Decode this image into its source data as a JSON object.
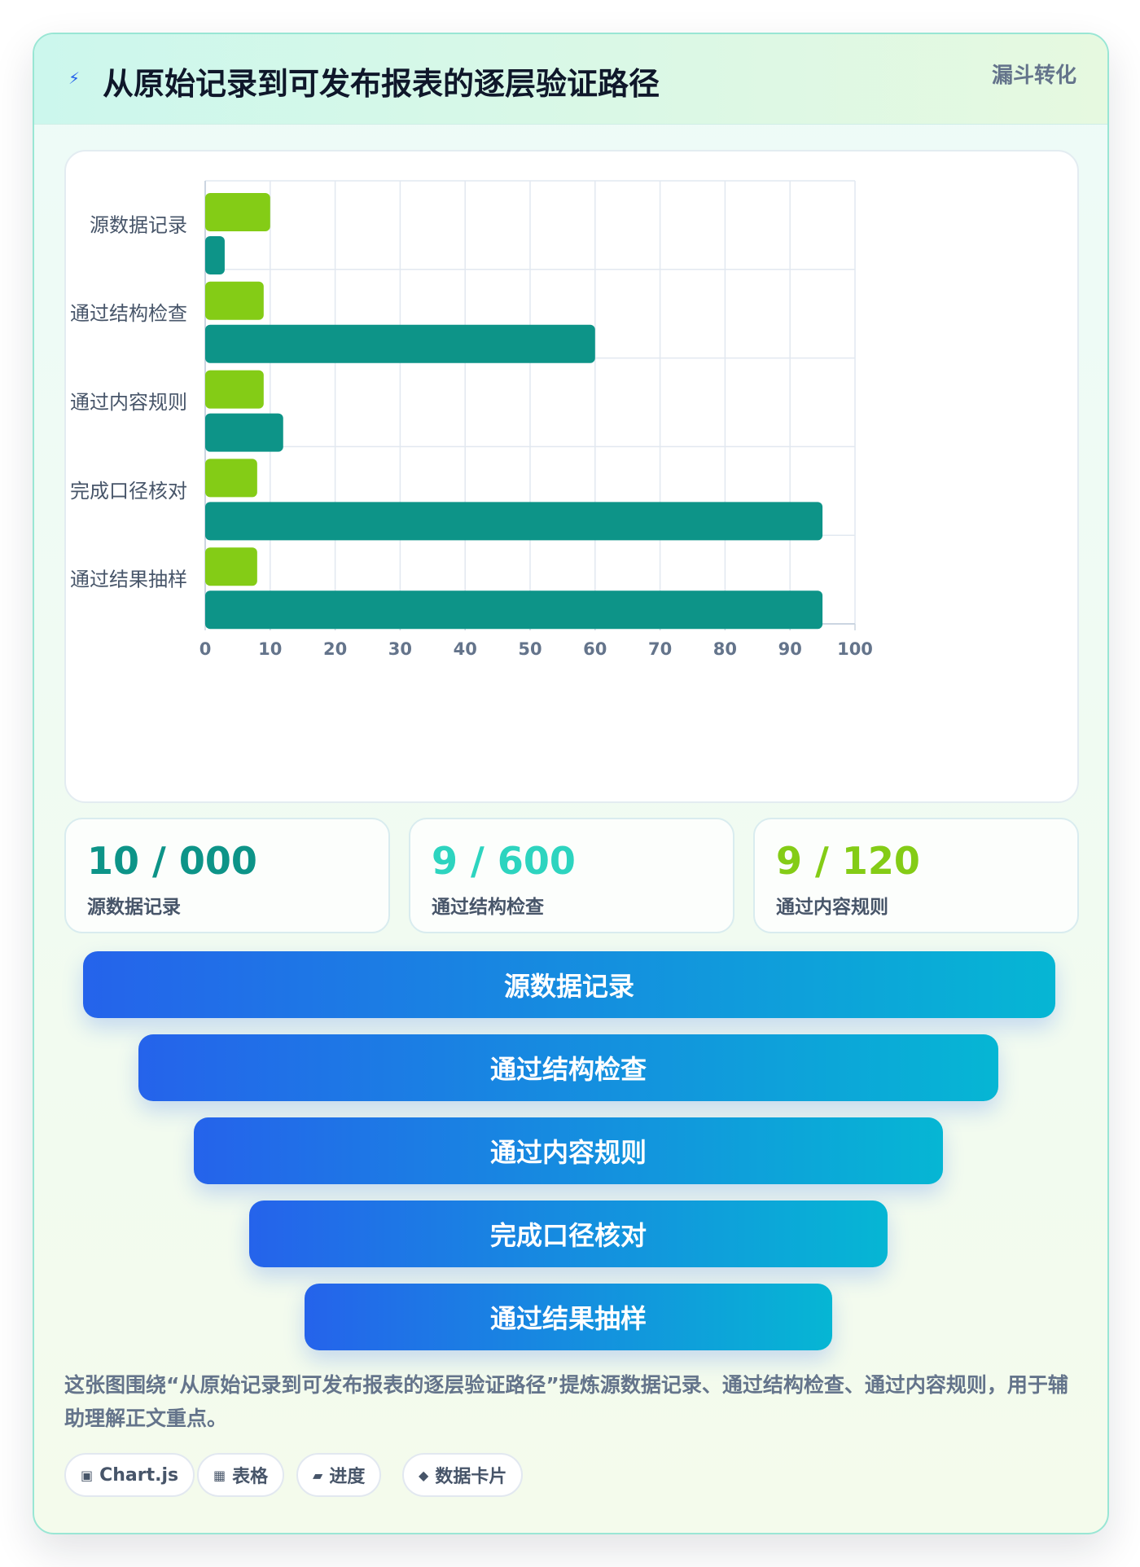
{
  "header": {
    "icon": "lightning-icon",
    "title": "从原始记录到可发布报表的逐层验证路径",
    "badge": "漏斗转化"
  },
  "chart_data": {
    "type": "bar",
    "orientation": "horizontal",
    "categories": [
      "源数据记录",
      "通过结构检查",
      "通过内容规则",
      "完成口径核对",
      "通过结果抽样"
    ],
    "series": [
      {
        "color": "#84cc16",
        "values": [
          10,
          9,
          9,
          8,
          8
        ]
      },
      {
        "color": "#0d9488",
        "values": [
          3,
          60,
          12,
          95,
          95
        ]
      }
    ],
    "xlim": [
      0,
      100
    ],
    "xticks": [
      0,
      10,
      20,
      30,
      40,
      50,
      60,
      70,
      80,
      90,
      100
    ],
    "grid": true,
    "legend": "none"
  },
  "stats": [
    {
      "value": "10 / 000",
      "label": "源数据记录",
      "color": "#0d9488"
    },
    {
      "value": "9 / 600",
      "label": "通过结构检查",
      "color": "#2dd4bf"
    },
    {
      "value": "9 / 120",
      "label": "通过内容规则",
      "color": "#84cc16"
    }
  ],
  "funnel": [
    "源数据记录",
    "通过结构检查",
    "通过内容规则",
    "完成口径核对",
    "通过结果抽样"
  ],
  "description": "这张图围绕“从原始记录到可发布报表的逐层验证路径”提炼源数据记录、通过结构检查、通过内容规则，用于辅助理解正文重点。",
  "chips": [
    {
      "icon": "▣",
      "label": "Chart.js"
    },
    {
      "icon": "▦",
      "label": "表格"
    },
    {
      "icon": "▰",
      "label": "进度"
    },
    {
      "icon": "◆",
      "label": "数据卡片"
    }
  ]
}
